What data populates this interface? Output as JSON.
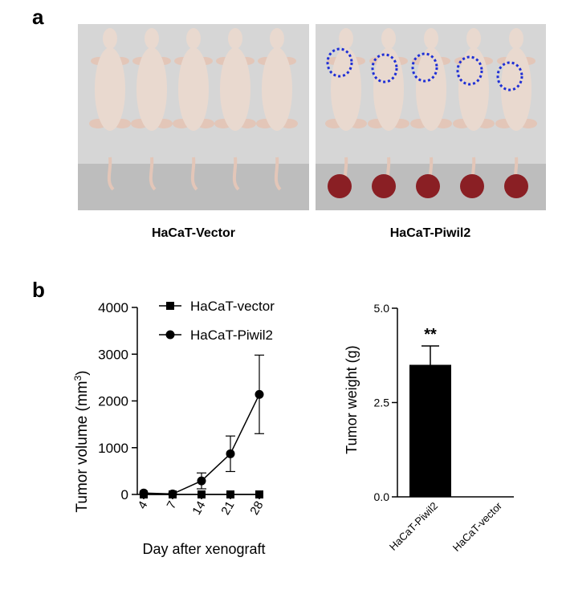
{
  "panels": {
    "a": "a",
    "b": "b"
  },
  "photos": {
    "left_caption": "HaCaT-Vector",
    "right_caption": "HaCaT-Piwil2",
    "left_mice": 5,
    "right_mice": 5,
    "right_tumors": 5
  },
  "colors": {
    "tumor_circle": "#1f2fd6",
    "bar": "#000000",
    "tumor": "#8a1f24"
  },
  "chart_data": [
    {
      "type": "line",
      "xlabel": "Day after xenograft",
      "ylabel": "Tumor volume (mm",
      "ylabel_sup": "3",
      "ylabel_close": ")",
      "x": [
        4,
        7,
        14,
        21,
        28
      ],
      "x_tick_labels": [
        "4",
        "7",
        "14",
        "21",
        "28"
      ],
      "ylim": [
        0,
        4000
      ],
      "y_ticks": [
        0,
        1000,
        2000,
        3000,
        4000
      ],
      "y_tick_labels": [
        "0",
        "1000",
        "2000",
        "3000",
        "4000"
      ],
      "legend_placement": "top-right",
      "series": [
        {
          "name": "HaCaT-vector",
          "marker": "square",
          "values": [
            0,
            0,
            0,
            0,
            0
          ],
          "error": [
            0,
            0,
            0,
            0,
            0
          ]
        },
        {
          "name": "HaCaT-Piwil2",
          "marker": "circle",
          "values": [
            30,
            10,
            290,
            870,
            2140
          ],
          "error": [
            0,
            0,
            170,
            380,
            840
          ]
        }
      ]
    },
    {
      "type": "bar",
      "ylabel": "Tumor weight (g)",
      "categories": [
        "HaCaT-Piwil2",
        "HaCaT-vector"
      ],
      "values": [
        3.5,
        0
      ],
      "error": [
        0.5,
        0
      ],
      "ylim": [
        0,
        5
      ],
      "y_ticks": [
        0,
        2.5,
        5
      ],
      "y_tick_labels": [
        "0.0",
        "2.5",
        "5.0"
      ],
      "annotation": "**"
    }
  ]
}
